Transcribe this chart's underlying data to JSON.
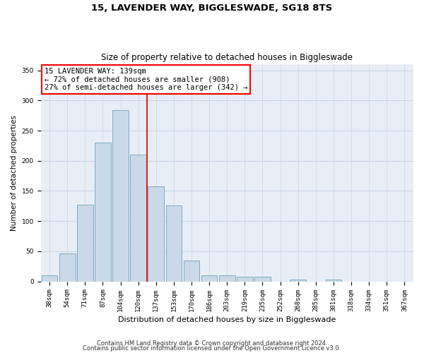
{
  "title": "15, LAVENDER WAY, BIGGLESWADE, SG18 8TS",
  "subtitle": "Size of property relative to detached houses in Biggleswade",
  "xlabel": "Distribution of detached houses by size in Biggleswade",
  "ylabel": "Number of detached properties",
  "categories": [
    "38sqm",
    "54sqm",
    "71sqm",
    "87sqm",
    "104sqm",
    "120sqm",
    "137sqm",
    "153sqm",
    "170sqm",
    "186sqm",
    "203sqm",
    "219sqm",
    "235sqm",
    "252sqm",
    "268sqm",
    "285sqm",
    "301sqm",
    "318sqm",
    "334sqm",
    "351sqm",
    "367sqm"
  ],
  "values": [
    10,
    46,
    127,
    230,
    284,
    210,
    157,
    126,
    35,
    10,
    10,
    8,
    8,
    0,
    3,
    0,
    3,
    0,
    0,
    0,
    0
  ],
  "bar_color": "#c9d9e8",
  "bar_edge_color": "#7bacc4",
  "vline_x": 5.5,
  "vline_color": "red",
  "annotation_text": "15 LAVENDER WAY: 139sqm\n← 72% of detached houses are smaller (908)\n27% of semi-detached houses are larger (342) →",
  "annotation_box_color": "white",
  "annotation_box_edge_color": "red",
  "ylim": [
    0,
    360
  ],
  "yticks": [
    0,
    50,
    100,
    150,
    200,
    250,
    300,
    350
  ],
  "grid_color": "#c8d4e4",
  "background_color": "#e8eef6",
  "footer1": "Contains HM Land Registry data © Crown copyright and database right 2024.",
  "footer2": "Contains public sector information licensed under the Open Government Licence v3.0.",
  "title_fontsize": 9.5,
  "subtitle_fontsize": 8.5,
  "xlabel_fontsize": 8,
  "ylabel_fontsize": 7.5,
  "tick_fontsize": 6.5,
  "annotation_fontsize": 7.5,
  "footer_fontsize": 6
}
